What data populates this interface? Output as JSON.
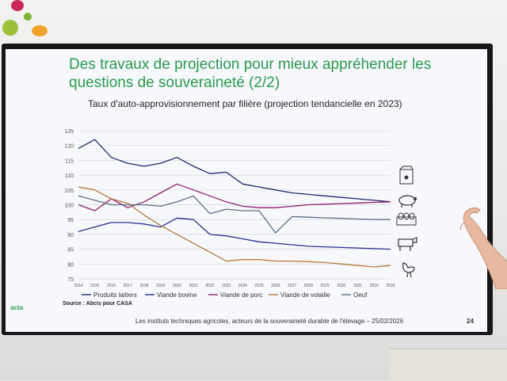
{
  "slide": {
    "title_line1": "Des travaux de projection pour mieux appréhender les",
    "title_line2": "questions de souveraineté (2/2)",
    "subtitle": "Taux d'auto-approvisionnement par filière (projection tendancielle en 2023)",
    "source": "Source : Abcis pour CASA",
    "footer": "Les instituts techniques agricoles, acteurs de la souveraineté durable de l'élevage – 25/02/2026",
    "page_number": "24",
    "logo_text": "acta"
  },
  "icons": [
    "milk-carton-icon",
    "pig-icon",
    "egg-box-icon",
    "cow-icon",
    "chicken-icon"
  ],
  "colors": {
    "produits_laitiers": "#1f2a6b",
    "viande_bovine": "#2a2f8c",
    "viande_de_porc": "#8e1e6e",
    "viande_de_volaille": "#b37a3c",
    "oeuf": "#5e6e86",
    "title_green": "#2a9a4e"
  },
  "chart_data": {
    "type": "line",
    "title": "Taux d'auto-approvisionnement par filière (projection tendancielle en 2023)",
    "xlabel": "",
    "ylabel": "",
    "ylim": [
      75,
      125
    ],
    "yticks": [
      75,
      80,
      85,
      90,
      95,
      100,
      105,
      110,
      115,
      120,
      125
    ],
    "grid": true,
    "legend_position": "bottom",
    "x": [
      "2014",
      "2015",
      "2016",
      "2017",
      "2018",
      "2019",
      "2020",
      "2021",
      "2022",
      "2023",
      "2024",
      "2025",
      "2026",
      "2027",
      "2028",
      "2029",
      "2030",
      "2031",
      "2032",
      "2033"
    ],
    "x_labels_shown": [
      "2014",
      "2015",
      "2016",
      "2017",
      "2018",
      "2019",
      "2020",
      "2021",
      "2022",
      "2023",
      "2024",
      "2025",
      "2026",
      "2027",
      "2028",
      "2029",
      "2030",
      "2031",
      "2032",
      "2033"
    ],
    "series": [
      {
        "name": "Produits laitiers",
        "values": [
          119,
          122,
          116,
          114,
          113,
          114,
          116,
          113,
          110.5,
          111,
          107,
          106,
          105,
          104,
          103.5,
          103,
          102.5,
          102,
          101.5,
          101
        ]
      },
      {
        "name": "Viande bovine",
        "values": [
          91,
          92.5,
          94,
          94,
          93.5,
          92.5,
          95.5,
          95,
          90,
          89.5,
          88.5,
          87.5,
          87,
          86.5,
          86,
          85.8,
          85.6,
          85.4,
          85.2,
          85
        ]
      },
      {
        "name": "Viande de porc",
        "values": [
          100,
          98,
          102,
          99,
          101,
          104,
          107,
          105,
          103,
          101,
          99.5,
          99,
          99,
          99.5,
          100,
          100.2,
          100.4,
          100.6,
          100.8,
          101
        ]
      },
      {
        "name": "Viande de volaille",
        "values": [
          106,
          105,
          102,
          100.5,
          96.5,
          93,
          90,
          87,
          84,
          81,
          81.5,
          81.5,
          81,
          81,
          80.8,
          80.5,
          80,
          79.5,
          79,
          79.5
        ]
      },
      {
        "name": "Oeuf",
        "values": [
          103,
          101.5,
          100,
          100,
          100,
          99.5,
          101,
          103,
          97,
          98.5,
          98,
          98,
          90.5,
          96,
          95.8,
          95.6,
          95.4,
          95.2,
          95,
          95
        ]
      }
    ]
  }
}
